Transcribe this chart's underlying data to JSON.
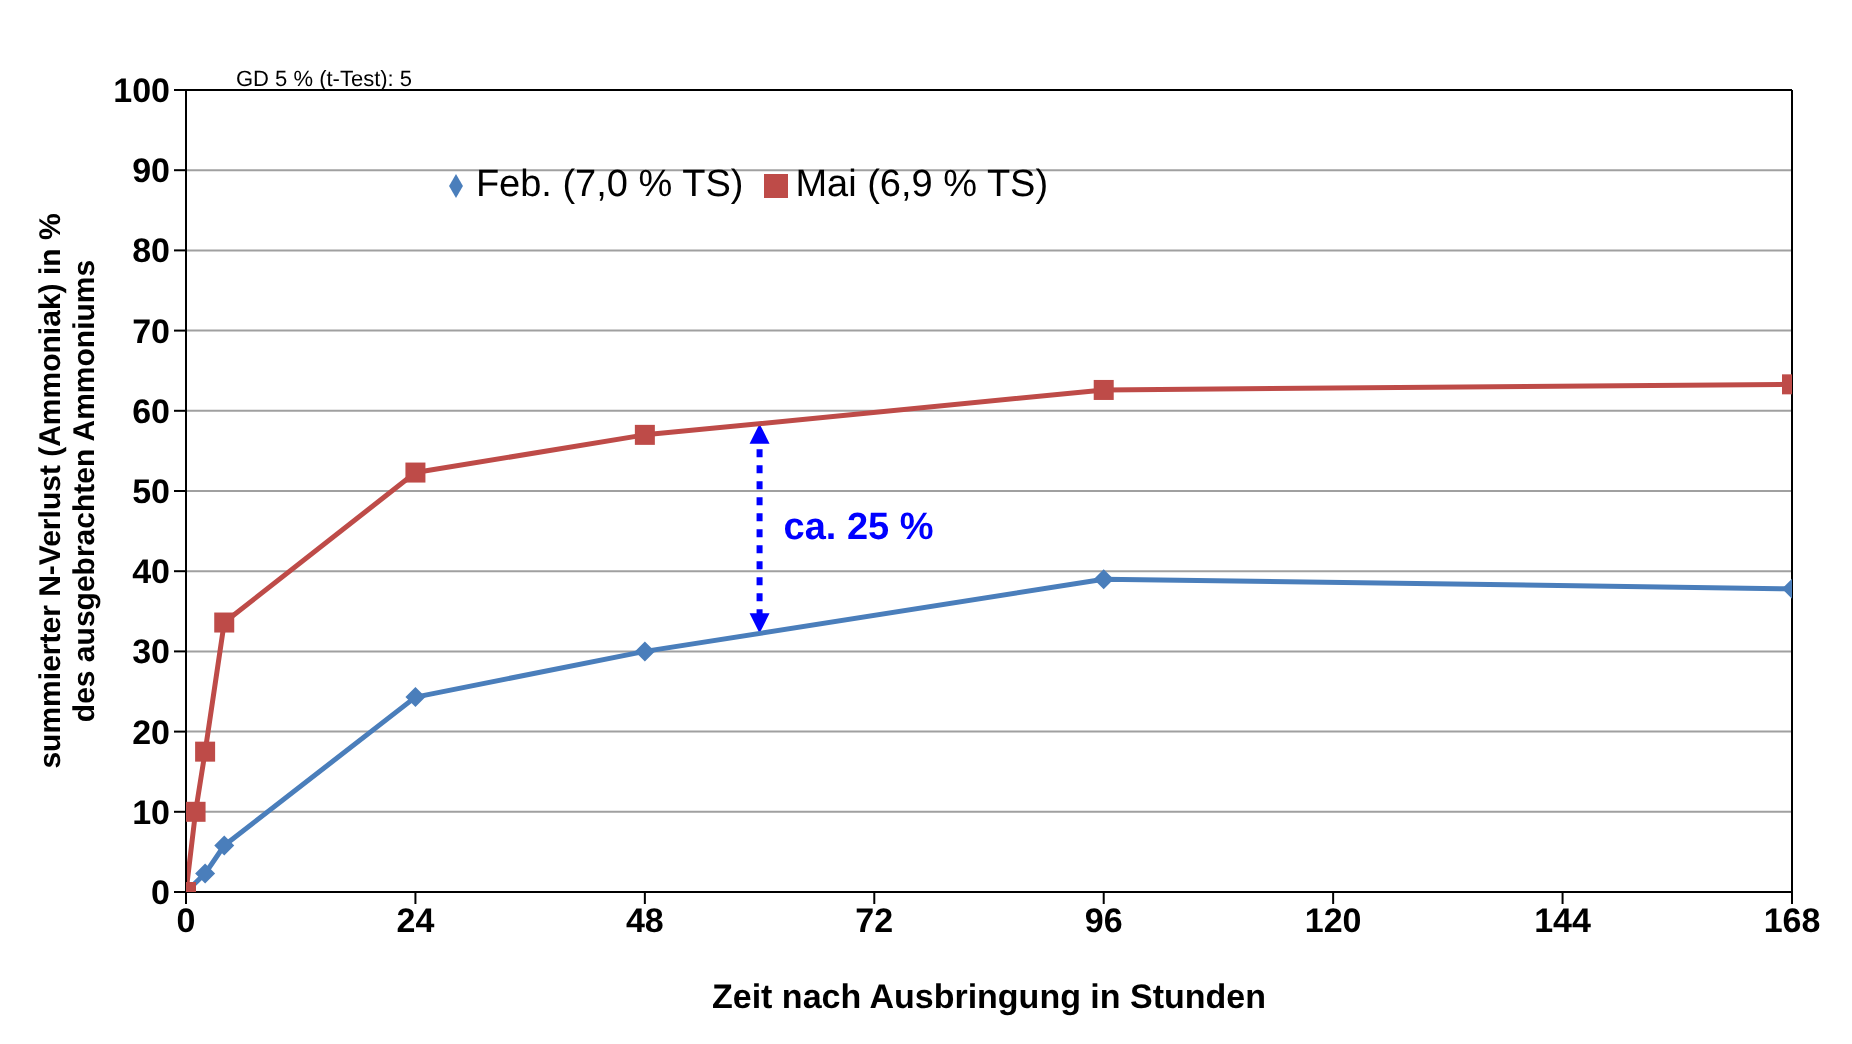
{
  "chart_data": {
    "type": "line",
    "xlabel": "Zeit nach Ausbringung in Stunden",
    "ylabel": "summierter N-Verlust (Ammoniak) in %\ndes ausgebrachten  Ammoniums",
    "annotations": [
      "GD 5 % (t-Test): 5",
      "ca. 25 %"
    ],
    "series": [
      {
        "name": "Feb. (7,0 % TS)",
        "color": "#4a7ebb",
        "marker": "diamond",
        "x": [
          0,
          2,
          4,
          24,
          48,
          96,
          168
        ],
        "values": [
          0,
          2.3,
          5.8,
          24.3,
          30,
          39,
          37.8
        ]
      },
      {
        "name": "Mai (6,9 % TS)",
        "color": "#be4b48",
        "marker": "square",
        "x": [
          0,
          1,
          2,
          4,
          24,
          48,
          96,
          168
        ],
        "values": [
          0,
          10,
          17.5,
          33.6,
          52.3,
          57,
          62.6,
          63.3
        ]
      }
    ],
    "xlim": [
      0,
      168
    ],
    "xticks": [
      0,
      24,
      48,
      72,
      96,
      120,
      144,
      168
    ],
    "ylim": [
      0,
      100
    ],
    "yticks": [
      0,
      10,
      20,
      30,
      40,
      50,
      60,
      70,
      80,
      90,
      100
    ],
    "grid": "y",
    "legend": "top"
  }
}
